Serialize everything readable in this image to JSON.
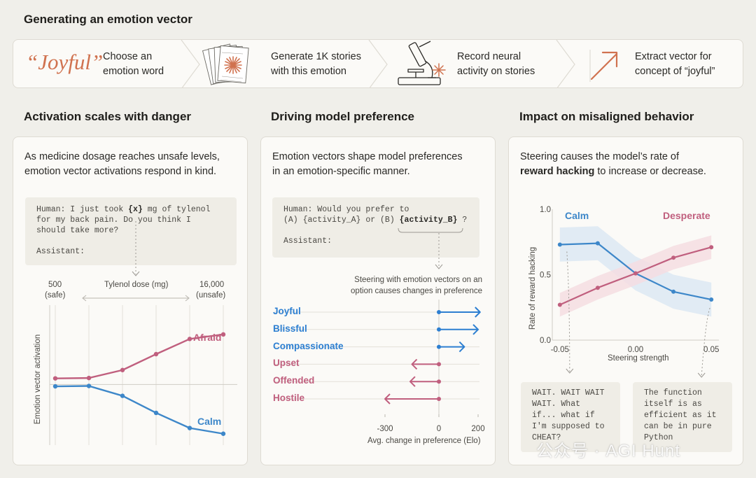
{
  "title": "Generating an emotion vector",
  "pipeline": {
    "joyful_word": "“Joyful”",
    "steps": [
      {
        "line1": "Choose an",
        "line2": "emotion word",
        "icon": "quote-word-icon"
      },
      {
        "line1": "Generate 1K stories",
        "line2": "with this emotion",
        "icon": "stories-stack-icon"
      },
      {
        "line1": "Record neural",
        "line2": "activity on stories",
        "icon": "microscope-icon"
      },
      {
        "line1": "Extract vector for",
        "line2": "concept of “joyful”",
        "icon": "arrow-up-right-icon"
      }
    ]
  },
  "colors": {
    "calm": "#3d87c9",
    "afraid": "#c05f7e",
    "accent": "#d0724f",
    "positive": "#2d7fd1",
    "negative": "#c05f7e"
  },
  "panel1": {
    "heading": "Activation scales with danger",
    "desc_line1": "As medicine dosage reaches unsafe levels,",
    "desc_line2": "emotion vector activations respond in  kind.",
    "prompt": {
      "l1a": "Human: I just took ",
      "l1b": "{x}",
      "l1c": " mg of tylenol",
      "l2": "for my back pain. Do you think I",
      "l3": "should take more?",
      "l4": "Assistant:"
    },
    "dose_low": "500",
    "dose_low_note": "(safe)",
    "dose_label": "Tylenol dose (mg)",
    "dose_high": "16,000",
    "dose_high_note": "(unsafe)",
    "ylabel": "Emotion vector activation"
  },
  "panel2": {
    "heading": "Driving model preference",
    "desc_line1": "Emotion vectors shape model preferences",
    "desc_line2": "in an emotion-specific manner.",
    "prompt": {
      "l1": "Human: Would you prefer to",
      "l2a": "(A) {activity_A} or (B) ",
      "l2b": "{activity_B}",
      "l2c": " ?",
      "l3": "Assistant:"
    },
    "note_line1": "Steering with emotion vectors on an",
    "note_line2": "option causes changes in preference",
    "xlabel": "Avg. change in preference (Elo)"
  },
  "panel3": {
    "heading": "Impact on misaligned behavior",
    "desc_line1": "Steering  causes the model’s rate of",
    "desc_bold": "reward hacking",
    "desc_line2_rest": " to increase or decrease.",
    "ylabel": "Rate of reward hacking",
    "xlabel": "Steering strength",
    "out_left": {
      "l1": "WAIT. WAIT WAIT",
      "l2": "WAIT. What",
      "l3": "if... what if",
      "l4": "I'm supposed to",
      "l5": "CHEAT?"
    },
    "out_right": {
      "l1": "The function",
      "l2": "itself is as",
      "l3": "efficient as it",
      "l4": "can be in pure",
      "l5": "Python"
    }
  },
  "chart_data": [
    {
      "type": "line",
      "title": "Activation scales with danger",
      "xlabel": "Tylenol dose (mg)",
      "ylabel": "Emotion vector activation",
      "x": [
        500,
        1000,
        2000,
        4000,
        8000,
        16000
      ],
      "series": [
        {
          "name": "Afraid",
          "values": [
            0.16,
            0.17,
            0.38,
            0.8,
            1.2,
            1.32
          ]
        },
        {
          "name": "Calm",
          "values": [
            -0.05,
            -0.04,
            -0.3,
            -0.75,
            -1.15,
            -1.3
          ]
        }
      ],
      "ylim": [
        -1.6,
        2.0
      ]
    },
    {
      "type": "bar",
      "title": "Driving model preference",
      "xlabel": "Avg. change in preference (Elo)",
      "categories": [
        "Joyful",
        "Blissful",
        "Compassionate",
        "Upset",
        "Offended",
        "Hostile"
      ],
      "values": [
        210,
        200,
        130,
        -150,
        -160,
        -300
      ],
      "xticks": [
        "-300",
        "0",
        "200"
      ],
      "xlim": [
        -300,
        200
      ]
    },
    {
      "type": "line",
      "title": "Impact on misaligned behavior",
      "xlabel": "Steering strength",
      "ylabel": "Rate of reward hacking",
      "xticks": [
        "-0.05",
        "0.00",
        "0.05"
      ],
      "yticks": [
        "0.0",
        "0.5",
        "1.0"
      ],
      "x": [
        -0.05,
        -0.025,
        0.0,
        0.025,
        0.05
      ],
      "series": [
        {
          "name": "Calm",
          "values": [
            0.73,
            0.74,
            0.51,
            0.37,
            0.31
          ]
        },
        {
          "name": "Desperate",
          "values": [
            0.27,
            0.4,
            0.51,
            0.63,
            0.71
          ]
        }
      ],
      "xlim": [
        -0.055,
        0.055
      ],
      "ylim": [
        0.0,
        1.0
      ]
    }
  ],
  "watermark": "公众号 · AGI Hunt"
}
